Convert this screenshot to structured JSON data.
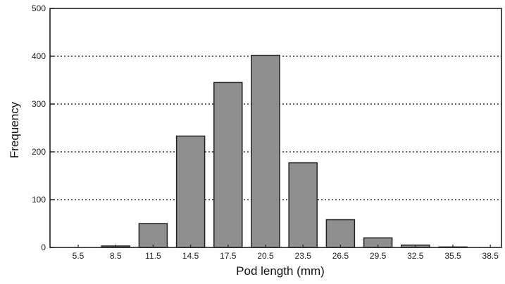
{
  "chart_data": {
    "type": "bar",
    "title": "",
    "xlabel": "Pod length (mm)",
    "ylabel": "Frequency",
    "categories": [
      "5.5",
      "8.5",
      "11.5",
      "14.5",
      "17.5",
      "20.5",
      "23.5",
      "26.5",
      "29.5",
      "32.5",
      "35.5",
      "38.5"
    ],
    "values": [
      0,
      3,
      50,
      233,
      345,
      402,
      177,
      58,
      20,
      5,
      1,
      0
    ],
    "ylim": [
      0,
      500
    ],
    "yticks": [
      "0",
      "100",
      "200",
      "300",
      "400",
      "500"
    ],
    "ytick_values": [
      0,
      100,
      200,
      300,
      400,
      500
    ],
    "grid": "horizontal dotted at 100, 200, 300, 400",
    "bar_color": "#8f8f8f",
    "bar_edge_color": "#222222",
    "legend": "none"
  }
}
